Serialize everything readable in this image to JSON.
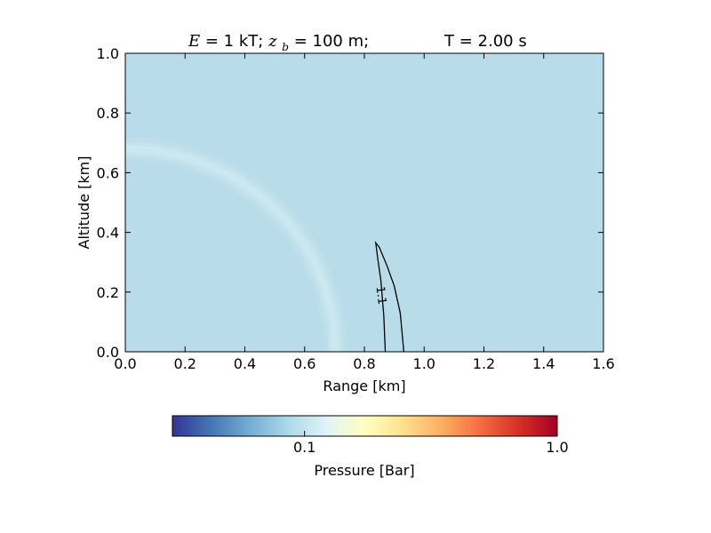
{
  "chart_data": {
    "type": "heatmap",
    "title": {
      "energy_symbol": "E",
      "energy_text": " = 1 kT; ",
      "depth_symbol": "z",
      "depth_subscript": "b",
      "depth_text": " = 100 m;",
      "time_text": "T =  2.00 s"
    },
    "xlabel": "Range [km]",
    "ylabel": "Altitude [km]",
    "xlim": [
      0.0,
      1.6
    ],
    "ylim": [
      0.0,
      1.0
    ],
    "xticks": [
      "0.0",
      "0.2",
      "0.4",
      "0.6",
      "0.8",
      "1.0",
      "1.2",
      "1.4",
      "1.6"
    ],
    "yticks": [
      "0.0",
      "0.2",
      "0.4",
      "0.6",
      "0.8",
      "1.0"
    ],
    "xtick_values": [
      0.0,
      0.2,
      0.4,
      0.6,
      0.8,
      1.0,
      1.2,
      1.4,
      1.6
    ],
    "ytick_values": [
      0.0,
      0.2,
      0.4,
      0.6,
      0.8,
      1.0
    ],
    "background_color": "#b8dce9",
    "shock_front": {
      "center_range_km": 0.0,
      "center_altitude_km": 0.0,
      "radius_km": 0.65,
      "color": "#d9eef3"
    },
    "contour": {
      "level_label": "1.1",
      "color": "#000000",
      "points": [
        [
          0.87,
          0.0
        ],
        [
          0.865,
          0.12
        ],
        [
          0.855,
          0.24
        ],
        [
          0.845,
          0.31
        ],
        [
          0.838,
          0.365
        ],
        [
          0.85,
          0.35
        ],
        [
          0.875,
          0.29
        ],
        [
          0.9,
          0.22
        ],
        [
          0.92,
          0.13
        ],
        [
          0.932,
          0.0
        ]
      ]
    },
    "colorbar": {
      "label": "Pressure [Bar]",
      "scale": "log",
      "range": [
        0.03,
        1.0
      ],
      "tick_labels": [
        "0.1",
        "1.0"
      ],
      "tick_values": [
        0.1,
        1.0
      ],
      "colormap": [
        "#313695",
        "#4575b4",
        "#74add1",
        "#abd9e9",
        "#e0f3f8",
        "#ffffbf",
        "#fee090",
        "#fdae61",
        "#f46d43",
        "#d73027",
        "#a50026"
      ]
    }
  }
}
